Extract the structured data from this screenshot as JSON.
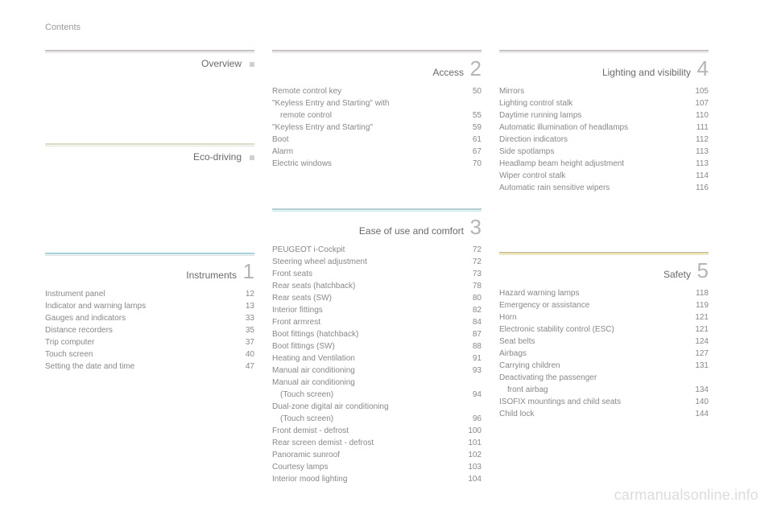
{
  "page_label": "Contents",
  "watermark": "carmanualsonline.info",
  "colors": {
    "overview": "#c6bec0",
    "eco": "#dcdcc0",
    "instruments": "#9ed3e0",
    "access": "#c6bec0",
    "ease": "#9ed3e0",
    "lighting": "#c6bec0",
    "safety": "#d8c67a",
    "text": "#888888",
    "title": "#6a6a6a",
    "num": "#b5b5b5"
  },
  "left": {
    "overview": {
      "title": "Overview"
    },
    "eco": {
      "title": "Eco-driving"
    },
    "instruments": {
      "title": "Instruments",
      "num": "1",
      "items": [
        {
          "label": "Instrument panel",
          "page": "12"
        },
        {
          "label": "Indicator and warning lamps",
          "page": "13"
        },
        {
          "label": "Gauges and indicators",
          "page": "33"
        },
        {
          "label": "Distance recorders",
          "page": "35"
        },
        {
          "label": "Trip computer",
          "page": "37"
        },
        {
          "label": "Touch screen",
          "page": "40"
        },
        {
          "label": "Setting the date and time",
          "page": "47"
        }
      ]
    }
  },
  "mid": {
    "access": {
      "title": "Access",
      "num": "2",
      "items": [
        {
          "label": "Remote control key",
          "page": "50"
        },
        {
          "label": "\"Keyless Entry and Starting\" with remote control",
          "page": "55",
          "wrap": true
        },
        {
          "label": "\"Keyless Entry and Starting\"",
          "page": "59"
        },
        {
          "label": "Boot",
          "page": "61"
        },
        {
          "label": "Alarm",
          "page": "67"
        },
        {
          "label": "Electric windows",
          "page": "70"
        }
      ]
    },
    "ease": {
      "title": "Ease of use and comfort",
      "num": "3",
      "items": [
        {
          "label": "PEUGEOT i-Cockpit",
          "page": "72"
        },
        {
          "label": "Steering wheel adjustment",
          "page": "72"
        },
        {
          "label": "Front seats",
          "page": "73"
        },
        {
          "label": "Rear seats (hatchback)",
          "page": "78"
        },
        {
          "label": "Rear seats (SW)",
          "page": "80"
        },
        {
          "label": "Interior fittings",
          "page": "82"
        },
        {
          "label": "Front armrest",
          "page": "84"
        },
        {
          "label": "Boot fittings (hatchback)",
          "page": "87"
        },
        {
          "label": "Boot fittings (SW)",
          "page": "88"
        },
        {
          "label": "Heating and Ventilation",
          "page": "91"
        },
        {
          "label": "Manual air conditioning",
          "page": "93"
        },
        {
          "label": "Manual air conditioning (Touch screen)",
          "page": "94",
          "wrap": true
        },
        {
          "label": "Dual-zone digital air conditioning (Touch screen)",
          "page": "96",
          "wrap": true
        },
        {
          "label": "Front demist - defrost",
          "page": "100"
        },
        {
          "label": "Rear screen demist - defrost",
          "page": "101"
        },
        {
          "label": "Panoramic sunroof",
          "page": "102"
        },
        {
          "label": "Courtesy lamps",
          "page": "103"
        },
        {
          "label": "Interior mood lighting",
          "page": "104"
        }
      ]
    }
  },
  "right": {
    "lighting": {
      "title": "Lighting and visibility",
      "num": "4",
      "items": [
        {
          "label": "Mirrors",
          "page": "105"
        },
        {
          "label": "Lighting control stalk",
          "page": "107"
        },
        {
          "label": "Daytime running lamps",
          "page": "110"
        },
        {
          "label": "Automatic illumination of headlamps",
          "page": "111"
        },
        {
          "label": "Direction indicators",
          "page": "112"
        },
        {
          "label": "Side spotlamps",
          "page": "113"
        },
        {
          "label": "Headlamp beam height adjustment",
          "page": "113"
        },
        {
          "label": "Wiper control stalk",
          "page": "114"
        },
        {
          "label": "Automatic rain sensitive wipers",
          "page": "116"
        }
      ]
    },
    "safety": {
      "title": "Safety",
      "num": "5",
      "items": [
        {
          "label": "Hazard warning lamps",
          "page": "118"
        },
        {
          "label": "Emergency or assistance",
          "page": "119"
        },
        {
          "label": "Horn",
          "page": "121"
        },
        {
          "label": "Electronic stability control (ESC)",
          "page": "121"
        },
        {
          "label": "Seat belts",
          "page": "124"
        },
        {
          "label": "Airbags",
          "page": "127"
        },
        {
          "label": "Carrying children",
          "page": "131"
        },
        {
          "label": "Deactivating the passenger front airbag",
          "page": "134",
          "wrap": true
        },
        {
          "label": "ISOFIX mountings and child seats",
          "page": "140"
        },
        {
          "label": "Child lock",
          "page": "144"
        }
      ]
    }
  }
}
